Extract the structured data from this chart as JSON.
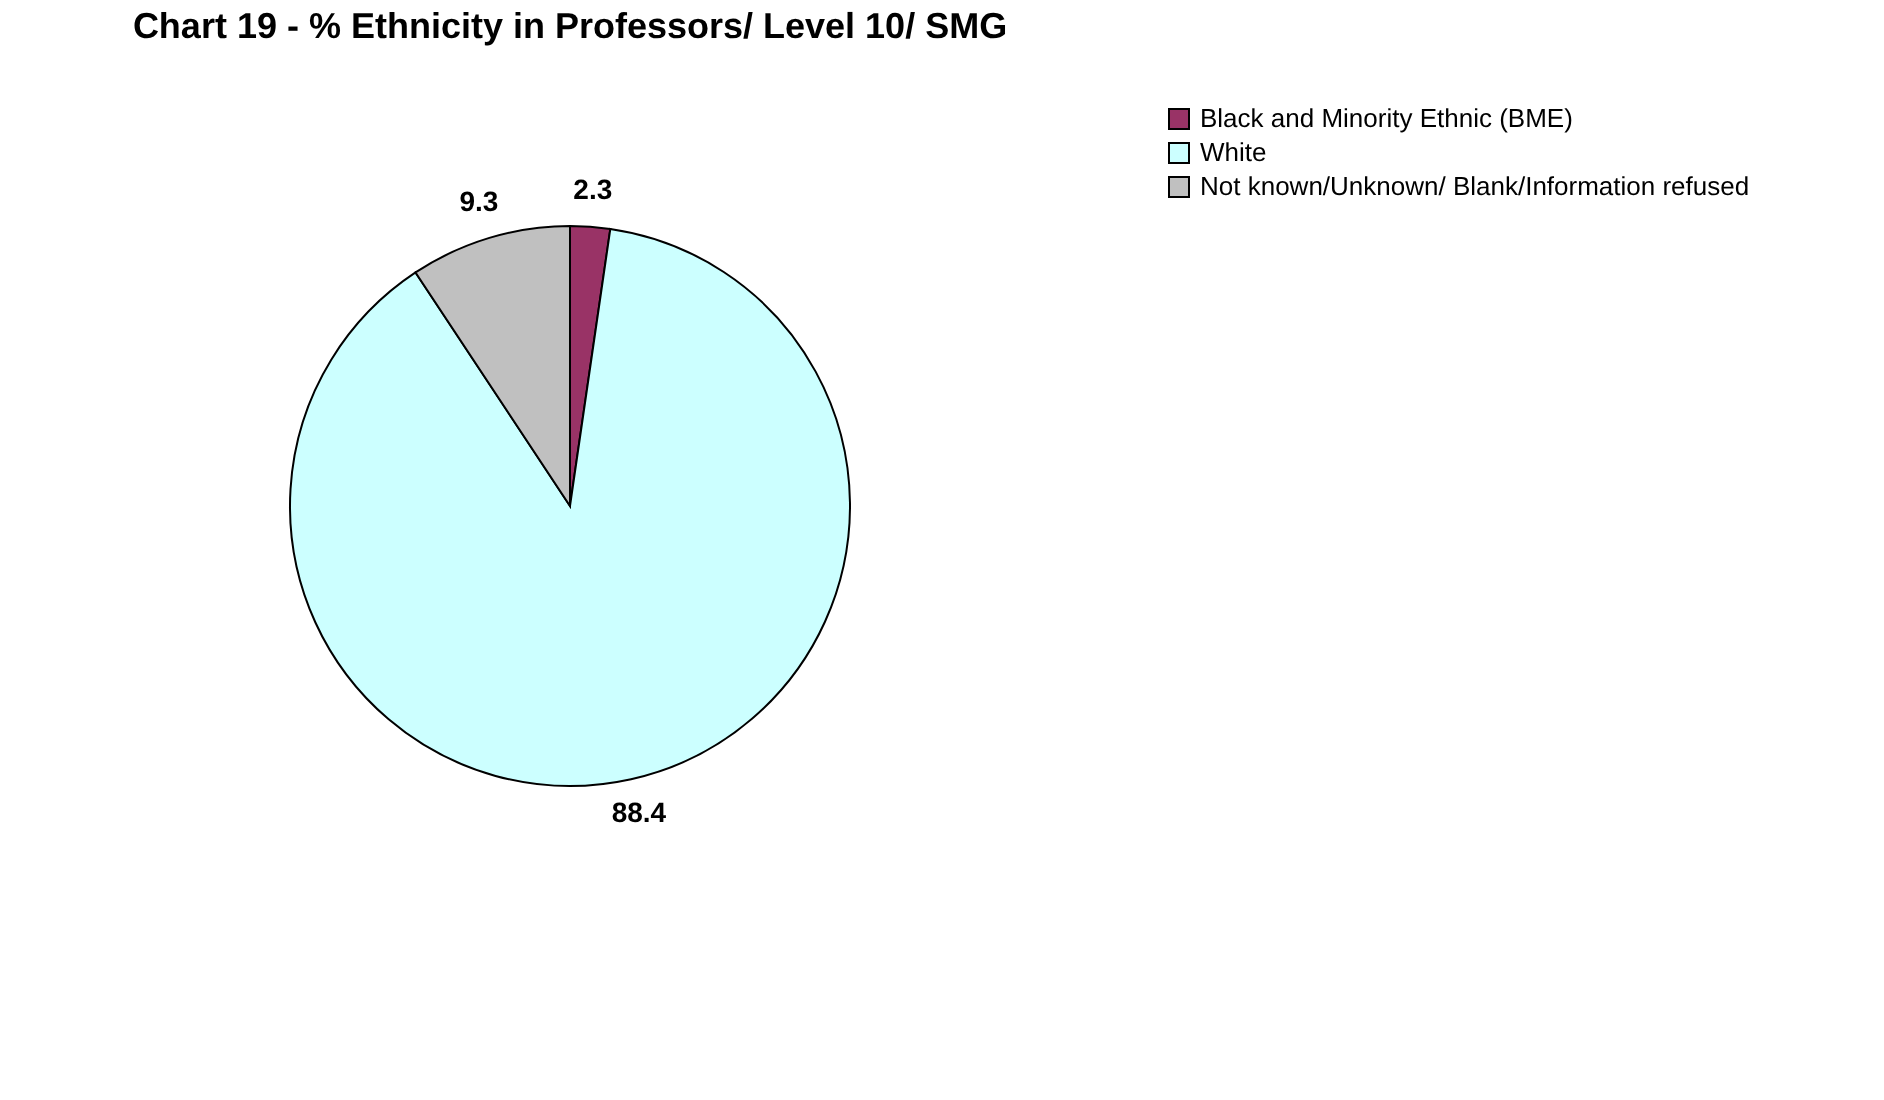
{
  "chart_data": {
    "type": "pie",
    "title": "Chart 19 - % Ethnicity in Professors/ Level 10/ SMG",
    "categories": [
      "Black and Minority Ethnic (BME)",
      "White",
      "Not known/Unknown/ Blank/Information refused"
    ],
    "values": [
      2.3,
      88.4,
      9.3
    ],
    "colors": [
      "#993366",
      "#ccffff",
      "#c0c0c0"
    ],
    "data_labels": true,
    "legend": "right"
  }
}
